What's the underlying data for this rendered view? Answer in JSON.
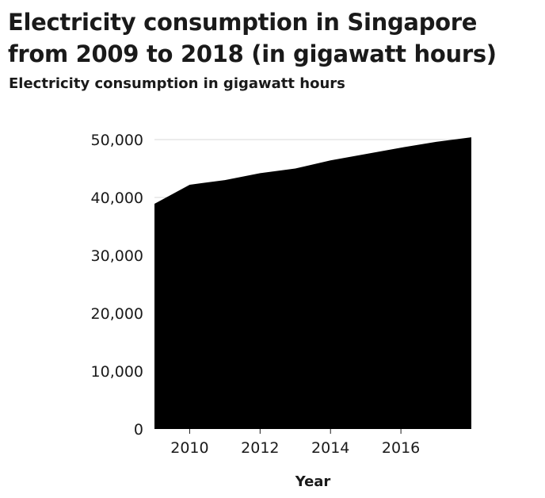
{
  "chart_data": {
    "type": "area",
    "title": "Electricity consumption in Singapore from 2009 to 2018 (in gigawatt hours)",
    "ylabel": "Electricity consumption in gigawatt hours",
    "xlabel": "Year",
    "x": [
      2009,
      2010,
      2011,
      2012,
      2013,
      2014,
      2015,
      2016,
      2017,
      2018
    ],
    "values": [
      38900,
      42200,
      43000,
      44200,
      45000,
      46400,
      47500,
      48600,
      49600,
      50400
    ],
    "xlim": [
      2009,
      2018
    ],
    "ylim": [
      0,
      50000
    ],
    "xticks": [
      2010,
      2012,
      2014,
      2016
    ],
    "xtick_labels": [
      "2010",
      "2012",
      "2014",
      "2016"
    ],
    "yticks": [
      0,
      10000,
      20000,
      30000,
      40000,
      50000
    ],
    "ytick_labels": [
      "0",
      "10,000",
      "20,000",
      "30,000",
      "40,000",
      "50,000"
    ],
    "grid": "horizontal",
    "fill_color": "#000000",
    "grid_color": "#d9d9d9",
    "axis_color": "#1a1a1a"
  }
}
